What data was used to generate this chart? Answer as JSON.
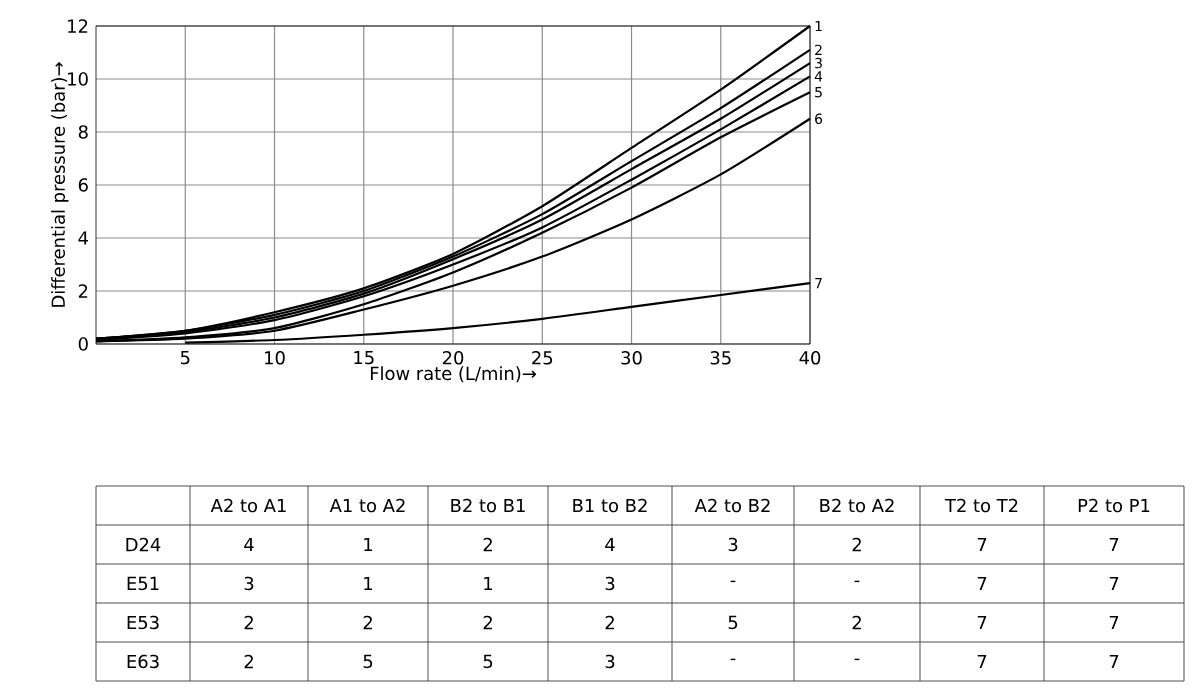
{
  "chart_data": [
    {
      "type": "line",
      "xlabel": "Flow rate (L/min)→",
      "ylabel": "Differential pressure (bar)→",
      "xlim": [
        0,
        40
      ],
      "ylim": [
        0,
        12
      ],
      "xticks": [
        5,
        10,
        15,
        20,
        25,
        30,
        35,
        40
      ],
      "yticks": [
        0,
        2,
        4,
        6,
        8,
        10,
        12
      ],
      "grid": true,
      "marker": "none",
      "line_style": "solid",
      "x": [
        0,
        5,
        10,
        15,
        20,
        25,
        30,
        35,
        40
      ],
      "series": [
        {
          "name": "1",
          "color": "#000000",
          "values": [
            0.2,
            0.5,
            1.2,
            2.1,
            3.4,
            5.2,
            7.4,
            9.6,
            12
          ]
        },
        {
          "name": "2",
          "color": "#000000",
          "values": [
            0.2,
            0.5,
            1.1,
            2.0,
            3.3,
            4.9,
            6.9,
            8.9,
            11.1
          ]
        },
        {
          "name": "3",
          "color": "#000000",
          "values": [
            0.2,
            0.45,
            1.0,
            1.9,
            3.2,
            4.7,
            6.6,
            8.5,
            10.6
          ]
        },
        {
          "name": "4",
          "color": "#000000",
          "values": [
            0.15,
            0.4,
            0.9,
            1.8,
            3.0,
            4.4,
            6.2,
            8.1,
            10.1
          ]
        },
        {
          "name": "5",
          "color": "#000000",
          "values": [
            0.1,
            0.25,
            0.6,
            1.5,
            2.7,
            4.2,
            5.9,
            7.8,
            9.5
          ]
        },
        {
          "name": "6",
          "color": "#000000",
          "values": [
            0.1,
            0.2,
            0.5,
            1.3,
            2.2,
            3.3,
            4.7,
            6.4,
            8.5
          ]
        },
        {
          "name": "7",
          "color": "#000000",
          "x": [
            5,
            10,
            15,
            20,
            25,
            30,
            35,
            40
          ],
          "values": [
            0.05,
            0.15,
            0.35,
            0.6,
            0.95,
            1.4,
            1.85,
            2.3
          ]
        }
      ]
    },
    {
      "type": "other",
      "categories": [
        "A2 to A1",
        "A1 to A2",
        "B2 to B1",
        "B1 to B2",
        "A2 to B2",
        "B2 to A2",
        "T2 to T2",
        "P2 to P1"
      ],
      "y_categories": [
        "D24",
        "E51",
        "E53",
        "E63"
      ],
      "cell_labels": [
        [
          "4",
          "1",
          "2",
          "4",
          "3",
          "2",
          "7",
          "7"
        ],
        [
          "3",
          "1",
          "1",
          "3",
          "-",
          "-",
          "7",
          "7"
        ],
        [
          "2",
          "2",
          "2",
          "2",
          "5",
          "2",
          "7",
          "7"
        ],
        [
          "2",
          "5",
          "5",
          "3",
          "-",
          "-",
          "7",
          "7"
        ]
      ]
    }
  ]
}
